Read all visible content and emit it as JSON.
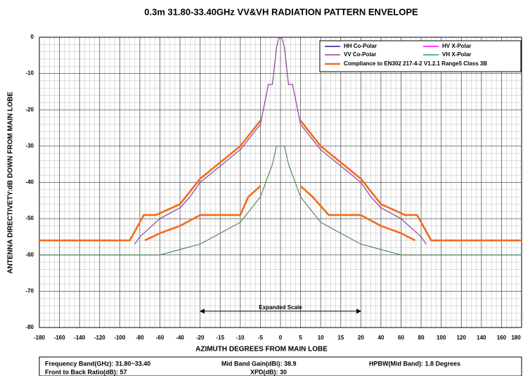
{
  "chart_data": {
    "type": "line",
    "title": "0.3m 31.80-33.40GHz VV&VH RADIATION PATTERN ENVELOPE",
    "x_label": "AZIMUTH DEGREES FROM MAIN LOBE",
    "y_label": "ANTENNA DIRECTIVETY:dB DOWN FROM MAIN LOBE",
    "xlim": [
      -180,
      180
    ],
    "ylim": [
      -80,
      0
    ],
    "xticks": [
      -180,
      -160,
      -140,
      -120,
      -100,
      -80,
      -60,
      -40,
      -20,
      -15,
      -10,
      -5,
      0,
      5,
      10,
      15,
      20,
      40,
      60,
      80,
      100,
      120,
      140,
      160,
      180
    ],
    "yticks": [
      0,
      -10,
      -20,
      -30,
      -40,
      -50,
      -60,
      -70,
      -80
    ],
    "grid": true,
    "legend": "upper right",
    "annotation": {
      "text": "Expanded Scale",
      "x": [
        -20,
        20
      ],
      "y": -75.5
    },
    "series": [
      {
        "name": "HH Co-Polar",
        "color": "#1f1f8f",
        "x": [
          -85,
          -80,
          -60,
          -40,
          -30,
          -20,
          -10,
          -5,
          -3,
          -2,
          -1,
          -0.5,
          0,
          0.5,
          1,
          2,
          3,
          5,
          10,
          20,
          30,
          40,
          60,
          80,
          85
        ],
        "values": [
          -57,
          -55,
          -50,
          -47,
          -44,
          -40,
          -31,
          -24,
          -13,
          -13,
          -3,
          -0.5,
          0,
          -0.5,
          -3,
          -13,
          -13,
          -24,
          -31,
          -40,
          -44,
          -47,
          -50,
          -55,
          -57
        ]
      },
      {
        "name": "HV X-Polar",
        "color": "#ff00ff",
        "x": [
          -180,
          -60,
          -40,
          -20,
          -10,
          -5,
          -2,
          -1,
          1,
          2,
          5,
          10,
          20,
          40,
          60,
          180
        ],
        "values": [
          -60,
          -60,
          -58.5,
          -57,
          -51,
          -44,
          -35,
          -30,
          -30,
          -35,
          -44,
          -51,
          -57,
          -58.5,
          -60,
          -60
        ]
      },
      {
        "name": "VV Co-Polar",
        "color": "#9b3f9b",
        "x": [
          -85,
          -80,
          -60,
          -40,
          -30,
          -20,
          -10,
          -5,
          -3,
          -2,
          -1,
          -0.5,
          0,
          0.5,
          1,
          2,
          3,
          5,
          10,
          20,
          30,
          40,
          60,
          80,
          85
        ],
        "values": [
          -57,
          -55,
          -50,
          -47,
          -44,
          -40,
          -31,
          -24,
          -13,
          -13,
          -3,
          -0.5,
          0,
          -0.5,
          -3,
          -13,
          -13,
          -24,
          -31,
          -40,
          -44,
          -47,
          -50,
          -55,
          -57
        ]
      },
      {
        "name": "VH X-Polar",
        "color": "#3a9a4a",
        "x": [
          -180,
          -60,
          -40,
          -20,
          -10,
          -5,
          -2,
          -1,
          1,
          2,
          5,
          10,
          20,
          40,
          60,
          180
        ],
        "values": [
          -60,
          -60,
          -58.5,
          -57,
          -51,
          -44,
          -35,
          -30,
          -30,
          -35,
          -44,
          -51,
          -57,
          -58.5,
          -60,
          -60
        ]
      },
      {
        "name": "Compliance to EN302 217-4-2 V1.2.1 Range5 Class 3B",
        "color": "#f26b1d",
        "x": [
          -180,
          -90,
          -76,
          -64,
          -40,
          -20,
          -10,
          -5,
          null,
          5,
          10,
          20,
          40,
          64,
          76,
          90,
          180,
          null,
          -75,
          -60,
          -40,
          -20,
          -10,
          -8,
          -5,
          null,
          5,
          8,
          12,
          20,
          40,
          60,
          74
        ],
        "values": [
          -56,
          -56,
          -49,
          -49,
          -46,
          -39,
          -30,
          -23,
          null,
          -23,
          -30,
          -39,
          -46,
          -49,
          -49,
          -56,
          -56,
          null,
          -56,
          -54,
          -52,
          -49,
          -49,
          -44,
          -41,
          null,
          -41,
          -44,
          -49,
          -49,
          -52,
          -54,
          -56
        ]
      }
    ]
  },
  "footer": {
    "frequency": "Frequency Band(GHz): 31.80~33.40",
    "front_to_back": "Front to Back Ratio(dB):   57",
    "gain": "Mid Band Gain(dBi): 38.9",
    "xpd": "XPD(dB): 30",
    "hpbw": "HPBW(Mid Band): 1.8 Degrees"
  }
}
